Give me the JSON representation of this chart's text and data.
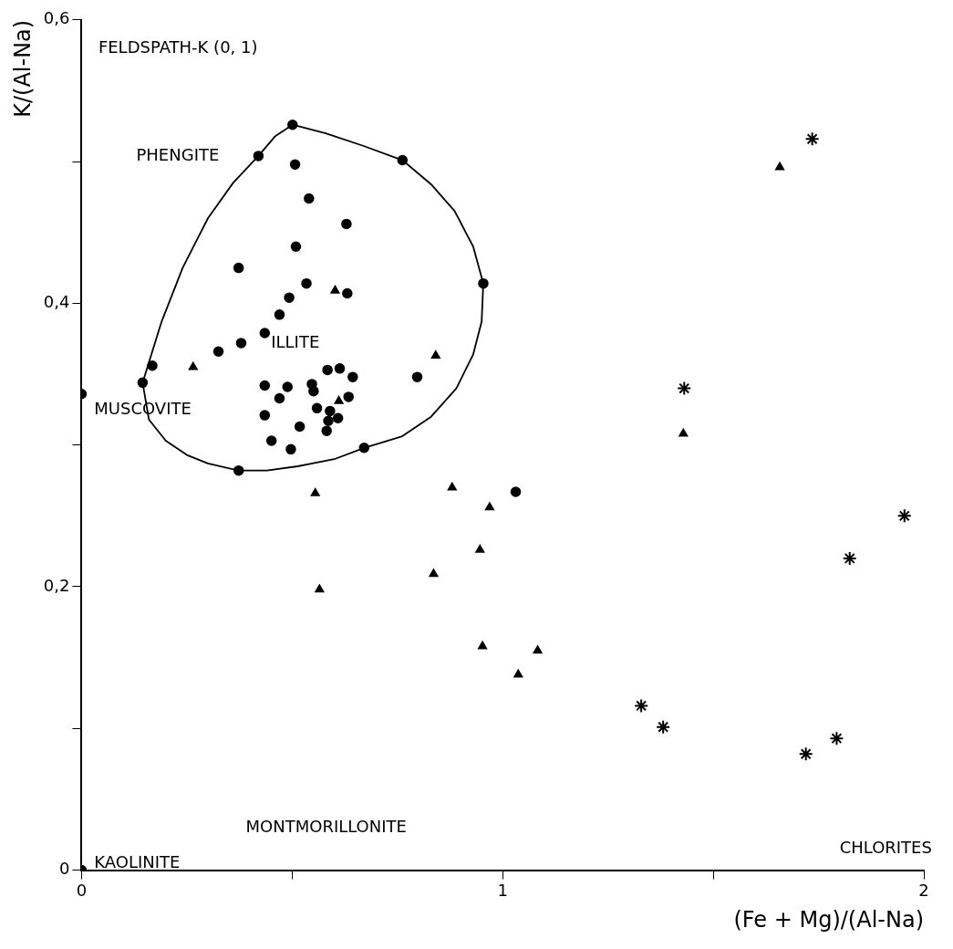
{
  "chart_data": {
    "type": "scatter",
    "xlabel": "(Fe + Mg)/(Al-Na)",
    "ylabel": "K/(Al-Na)",
    "xlim": [
      0,
      2
    ],
    "xticks": [
      0,
      {
        "value": 0.5,
        "label": null
      },
      1,
      {
        "value": 1.5,
        "label": null
      },
      2
    ],
    "ylim": [
      0,
      0.6
    ],
    "yticks": [
      0,
      {
        "value": 0.1,
        "label": null
      },
      {
        "value": 0.2,
        "label": "0,2"
      },
      {
        "value": 0.3,
        "label": null
      },
      {
        "value": 0.4,
        "label": "0,4"
      },
      {
        "value": 0.5,
        "label": null
      },
      {
        "value": 0.6,
        "label": "0,6"
      }
    ],
    "grid": false,
    "legend": false,
    "series": [
      {
        "color": "#000000",
        "marker": "circle",
        "x": [
          0.501,
          0.507,
          0.54,
          0.629,
          0.509,
          0.373,
          0.534,
          0.493,
          0.631,
          0.47,
          0.435,
          0.379,
          0.325,
          0.168,
          0.145,
          0.435,
          0.489,
          0.547,
          0.584,
          0.613,
          0.644,
          0.551,
          0.634,
          0.47,
          0.559,
          0.435,
          0.59,
          0.609,
          0.586,
          0.518,
          0.582,
          0.451,
          0.497,
          0.373,
          0.671,
          0.797,
          0.762,
          0.954,
          1.031
        ],
        "values": [
          0.526,
          0.498,
          0.474,
          0.456,
          0.44,
          0.425,
          0.414,
          0.404,
          0.407,
          0.392,
          0.379,
          0.372,
          0.366,
          0.356,
          0.344,
          0.342,
          0.341,
          0.343,
          0.353,
          0.354,
          0.348,
          0.338,
          0.334,
          0.333,
          0.326,
          0.321,
          0.324,
          0.319,
          0.317,
          0.313,
          0.31,
          0.303,
          0.297,
          0.282,
          0.298,
          0.348,
          0.501,
          0.414,
          0.267
        ]
      },
      {
        "color": "#000000",
        "marker": "triangle",
        "x": [
          0.602,
          0.841,
          0.265,
          0.611,
          0.555,
          0.88,
          0.969,
          0.946,
          0.836,
          0.565,
          0.952,
          1.037,
          1.083,
          1.429,
          1.658
        ],
        "values": [
          0.409,
          0.363,
          0.355,
          0.331,
          0.266,
          0.27,
          0.256,
          0.226,
          0.209,
          0.198,
          0.158,
          0.138,
          0.155,
          0.308,
          0.496
        ]
      },
      {
        "color": "#000000",
        "marker": "cross",
        "x": [
          1.735,
          1.431,
          1.954,
          1.824,
          1.329,
          1.381,
          1.793,
          1.72
        ],
        "values": [
          0.516,
          0.34,
          0.25,
          0.22,
          0.116,
          0.101,
          0.093,
          0.082
        ]
      },
      {
        "color": "#000000",
        "marker": "circle",
        "x": [
          0.42,
          0,
          0
        ],
        "values": [
          0.504,
          0.336,
          0
        ]
      },
      {
        "type": "line",
        "color": "#000000",
        "marker": "none",
        "line_style": "solid",
        "x": [
          0.145,
          0.19,
          0.24,
          0.3,
          0.36,
          0.42,
          0.46,
          0.501,
          0.58,
          0.67,
          0.762,
          0.83,
          0.886,
          0.93,
          0.954
        ],
        "values": [
          0.344,
          0.387,
          0.425,
          0.46,
          0.485,
          0.504,
          0.518,
          0.526,
          0.52,
          0.511,
          0.501,
          0.484,
          0.465,
          0.44,
          0.414
        ]
      },
      {
        "type": "line",
        "color": "#000000",
        "marker": "none",
        "line_style": "solid",
        "x": [
          0.145,
          0.16,
          0.2,
          0.25,
          0.3,
          0.373,
          0.44,
          0.513,
          0.6,
          0.671,
          0.76,
          0.83,
          0.89,
          0.93,
          0.95,
          0.954
        ],
        "values": [
          0.344,
          0.318,
          0.303,
          0.293,
          0.287,
          0.282,
          0.282,
          0.285,
          0.29,
          0.298,
          0.306,
          0.32,
          0.34,
          0.364,
          0.387,
          0.414
        ]
      }
    ],
    "annotations": [
      "FELDSPATH-K (0, 1)",
      "PHENGITE",
      "MUSCOVITE",
      "ILLITE",
      "MONTMORILLONITE",
      "KAOLINITE",
      "CHLORITES"
    ]
  }
}
